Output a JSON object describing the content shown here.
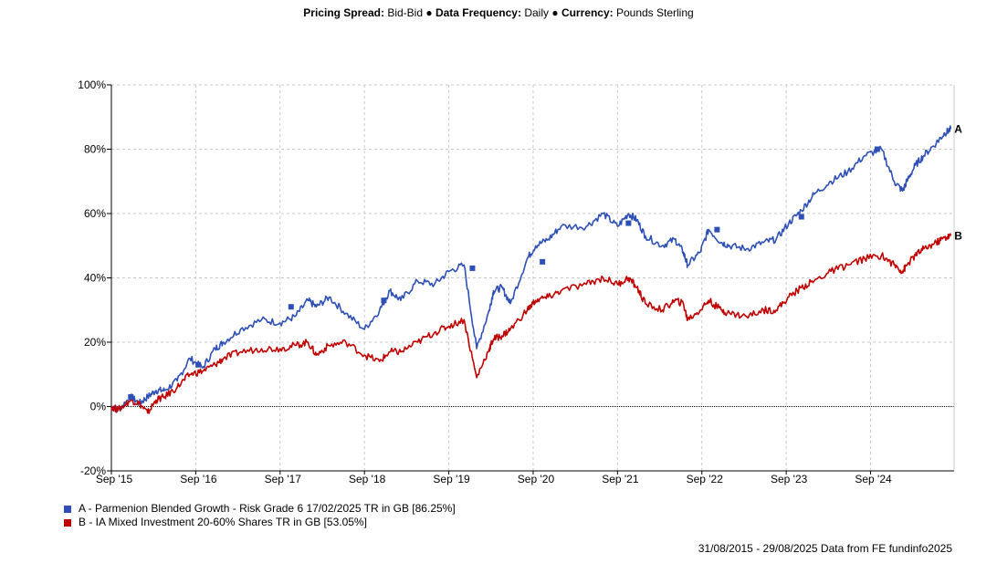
{
  "header": {
    "spread_label": "Pricing Spread:",
    "spread_value": "Bid-Bid",
    "sep1": "●",
    "freq_label": "Data Frequency:",
    "freq_value": "Daily",
    "sep2": "●",
    "currency_label": "Currency:",
    "currency_value": "Pounds Sterling"
  },
  "legend": {
    "a": "A - Parmenion Blended Growth - Risk Grade 6 17/02/2025 TR in GB [86.25%]",
    "b": "B - IA Mixed Investment 20-60% Shares TR in GB [53.05%]"
  },
  "footer": "31/08/2015 - 29/08/2025 Data from FE fundinfo2025",
  "colors": {
    "a": "#2e4fb5",
    "b": "#c00000"
  },
  "chart_data": {
    "type": "line",
    "ylim": [
      -20,
      100
    ],
    "yticks": [
      "100%",
      "80%",
      "60%",
      "40%",
      "20%",
      "0%",
      "-20%"
    ],
    "ytick_values": [
      100,
      80,
      60,
      40,
      20,
      0,
      -20
    ],
    "xlim": [
      2015.67,
      2025.66
    ],
    "xticks": [
      "Sep '15",
      "Sep '16",
      "Sep '17",
      "Sep '18",
      "Sep '19",
      "Sep '20",
      "Sep '21",
      "Sep '22",
      "Sep '23",
      "Sep '24"
    ],
    "xtick_values": [
      2015.67,
      2016.67,
      2017.67,
      2018.67,
      2019.67,
      2020.67,
      2021.67,
      2022.67,
      2023.67,
      2024.67
    ],
    "grid": true,
    "legend_position": "bottom-left",
    "series": [
      {
        "name": "A",
        "color": "#2e4fb5",
        "end_label": "A",
        "x": [
          2015.67,
          2015.75,
          2015.9,
          2016.0,
          2016.1,
          2016.2,
          2016.3,
          2016.45,
          2016.6,
          2016.75,
          2016.9,
          2017.0,
          2017.2,
          2017.45,
          2017.67,
          2017.85,
          2018.0,
          2018.1,
          2018.25,
          2018.45,
          2018.67,
          2018.85,
          2018.97,
          2019.1,
          2019.3,
          2019.5,
          2019.67,
          2019.85,
          2020.0,
          2020.15,
          2020.2,
          2020.3,
          2020.4,
          2020.6,
          2020.7,
          2020.85,
          2021.0,
          2021.3,
          2021.5,
          2021.67,
          2021.8,
          2021.9,
          2022.0,
          2022.2,
          2022.35,
          2022.45,
          2022.5,
          2022.65,
          2022.75,
          2022.9,
          2023.0,
          2023.2,
          2023.4,
          2023.55,
          2023.7,
          2023.85,
          2024.0,
          2024.2,
          2024.4,
          2024.6,
          2024.8,
          2024.95,
          2025.05,
          2025.1,
          2025.2,
          2025.3,
          2025.45,
          2025.55,
          2025.62
        ],
        "values": [
          0,
          -1,
          3,
          1,
          3,
          5,
          5,
          8,
          15,
          12,
          18,
          20,
          24,
          27,
          26,
          28,
          33,
          31,
          34,
          29,
          24,
          30,
          36,
          33,
          39,
          38,
          42,
          44,
          18,
          30,
          36,
          37,
          32,
          46,
          50,
          52,
          56,
          56,
          60,
          56,
          60,
          58,
          53,
          50,
          52,
          48,
          44,
          48,
          55,
          51,
          50,
          49,
          51,
          52,
          57,
          61,
          66,
          70,
          73,
          78,
          80,
          70,
          67,
          70,
          75,
          78,
          82,
          85,
          86.25
        ]
      },
      {
        "name": "B",
        "color": "#c00000",
        "end_label": "B",
        "x": [
          2015.67,
          2015.75,
          2015.9,
          2016.0,
          2016.1,
          2016.2,
          2016.3,
          2016.45,
          2016.6,
          2016.75,
          2016.9,
          2017.0,
          2017.2,
          2017.45,
          2017.67,
          2017.85,
          2018.0,
          2018.1,
          2018.25,
          2018.45,
          2018.67,
          2018.85,
          2018.97,
          2019.1,
          2019.3,
          2019.5,
          2019.67,
          2019.85,
          2020.0,
          2020.15,
          2020.2,
          2020.3,
          2020.4,
          2020.6,
          2020.7,
          2020.85,
          2021.0,
          2021.3,
          2021.5,
          2021.67,
          2021.8,
          2021.9,
          2022.0,
          2022.2,
          2022.35,
          2022.45,
          2022.5,
          2022.65,
          2022.75,
          2022.9,
          2023.0,
          2023.2,
          2023.4,
          2023.55,
          2023.7,
          2023.85,
          2024.0,
          2024.2,
          2024.4,
          2024.6,
          2024.8,
          2024.95,
          2025.05,
          2025.1,
          2025.2,
          2025.3,
          2025.45,
          2025.55,
          2025.62
        ],
        "values": [
          0,
          -1,
          2,
          1,
          -2,
          2,
          3,
          6,
          10,
          11,
          13,
          15,
          17,
          18,
          18,
          19,
          20,
          16,
          19,
          20,
          16,
          14,
          17,
          17,
          20,
          23,
          25,
          27,
          9,
          18,
          21,
          22,
          24,
          30,
          33,
          34,
          36,
          38,
          40,
          38,
          40,
          37,
          32,
          30,
          33,
          32,
          27,
          30,
          33,
          30,
          29,
          28,
          30,
          30,
          34,
          37,
          39,
          42,
          44,
          46,
          47,
          44,
          42,
          44,
          47,
          49,
          51,
          52.5,
          53.05
        ]
      }
    ],
    "markers": [
      {
        "series": "A",
        "x": [
          2015.9,
          2016.7,
          2017.8,
          2018.9,
          2019.95,
          2020.78,
          2021.8,
          2022.85,
          2023.85,
          2024.75
        ],
        "values": [
          3,
          13,
          31,
          33,
          43,
          45,
          57,
          55,
          59,
          80
        ]
      }
    ]
  }
}
